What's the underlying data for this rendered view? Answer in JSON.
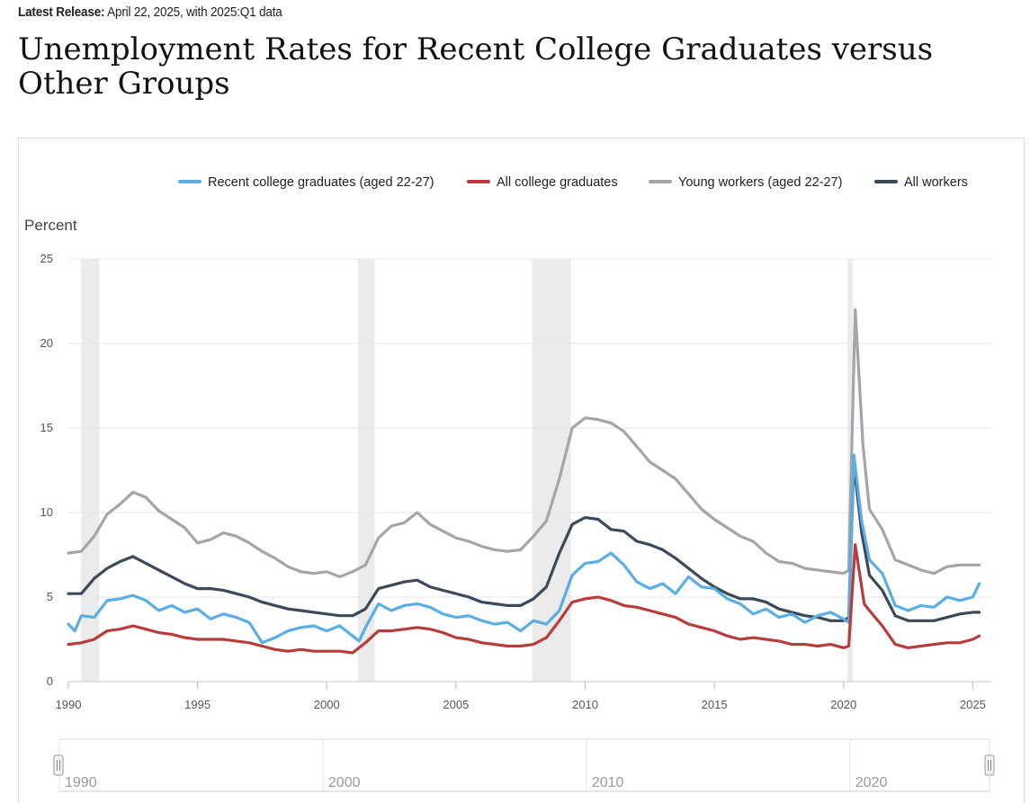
{
  "header": {
    "release_label": "Latest Release:",
    "release_text": "April 22, 2025, with 2025:Q1 data",
    "title": "Unemployment Rates for Recent College Graduates versus Other Groups"
  },
  "colors": {
    "recent": "#5aaee3",
    "all_grads": "#b83c3c",
    "young": "#a3a5aa",
    "all_workers": "#3b4a58",
    "recession": "#ebebeb",
    "grid": "#e4e4e4"
  },
  "chart_data": {
    "type": "line",
    "title": "Unemployment Rates for Recent College Graduates versus Other Groups",
    "ylabel": "Percent",
    "xlabel": "",
    "xlim": [
      1990,
      2025.3
    ],
    "ylim": [
      0,
      25
    ],
    "yticks": [
      "0",
      "5",
      "10",
      "15",
      "20",
      "25"
    ],
    "xticks": [
      "1990",
      "1995",
      "2000",
      "2005",
      "2010",
      "2015",
      "2020",
      "2025"
    ],
    "legend_position": "top-right",
    "recessions": [
      [
        1990.5,
        1991.2
      ],
      [
        2001.2,
        2001.85
      ],
      [
        2007.95,
        2009.45
      ],
      [
        2020.15,
        2020.35
      ]
    ],
    "navigator_labels": [
      "1990",
      "2000",
      "2010",
      "2020"
    ],
    "series": [
      {
        "name": "Recent college graduates (aged 22-27)",
        "key": "recent",
        "points": [
          [
            1990,
            3.4
          ],
          [
            1990.25,
            3.0
          ],
          [
            1990.5,
            3.9
          ],
          [
            1991,
            3.8
          ],
          [
            1991.5,
            4.8
          ],
          [
            1992,
            4.9
          ],
          [
            1992.5,
            5.1
          ],
          [
            1993,
            4.8
          ],
          [
            1993.5,
            4.2
          ],
          [
            1994,
            4.5
          ],
          [
            1994.5,
            4.1
          ],
          [
            1995,
            4.3
          ],
          [
            1995.5,
            3.7
          ],
          [
            1996,
            4.0
          ],
          [
            1996.5,
            3.8
          ],
          [
            1997,
            3.5
          ],
          [
            1997.5,
            2.3
          ],
          [
            1998,
            2.6
          ],
          [
            1998.5,
            3.0
          ],
          [
            1999,
            3.2
          ],
          [
            1999.5,
            3.3
          ],
          [
            2000,
            3.0
          ],
          [
            2000.5,
            3.3
          ],
          [
            2001,
            2.7
          ],
          [
            2001.25,
            2.4
          ],
          [
            2001.5,
            3.2
          ],
          [
            2002,
            4.6
          ],
          [
            2002.5,
            4.2
          ],
          [
            2003,
            4.5
          ],
          [
            2003.5,
            4.6
          ],
          [
            2004,
            4.4
          ],
          [
            2004.5,
            4.0
          ],
          [
            2005,
            3.8
          ],
          [
            2005.5,
            3.9
          ],
          [
            2006,
            3.6
          ],
          [
            2006.5,
            3.4
          ],
          [
            2007,
            3.5
          ],
          [
            2007.5,
            3.0
          ],
          [
            2008,
            3.6
          ],
          [
            2008.5,
            3.4
          ],
          [
            2009,
            4.2
          ],
          [
            2009.5,
            6.3
          ],
          [
            2010,
            7.0
          ],
          [
            2010.5,
            7.1
          ],
          [
            2011,
            7.6
          ],
          [
            2011.5,
            6.9
          ],
          [
            2012,
            5.9
          ],
          [
            2012.5,
            5.5
          ],
          [
            2013,
            5.8
          ],
          [
            2013.5,
            5.2
          ],
          [
            2014,
            6.2
          ],
          [
            2014.5,
            5.6
          ],
          [
            2015,
            5.5
          ],
          [
            2015.5,
            4.9
          ],
          [
            2016,
            4.6
          ],
          [
            2016.5,
            4.0
          ],
          [
            2017,
            4.3
          ],
          [
            2017.5,
            3.8
          ],
          [
            2018,
            4.0
          ],
          [
            2018.5,
            3.5
          ],
          [
            2019,
            3.9
          ],
          [
            2019.5,
            4.1
          ],
          [
            2020,
            3.7
          ],
          [
            2020.2,
            3.5
          ],
          [
            2020.4,
            13.4
          ],
          [
            2020.7,
            9.5
          ],
          [
            2021,
            7.2
          ],
          [
            2021.5,
            6.4
          ],
          [
            2022,
            4.5
          ],
          [
            2022.5,
            4.2
          ],
          [
            2023,
            4.5
          ],
          [
            2023.5,
            4.4
          ],
          [
            2024,
            5.0
          ],
          [
            2024.5,
            4.8
          ],
          [
            2025,
            5.0
          ],
          [
            2025.25,
            5.8
          ]
        ]
      },
      {
        "name": "All college graduates",
        "key": "all_grads",
        "points": [
          [
            1990,
            2.2
          ],
          [
            1990.5,
            2.3
          ],
          [
            1991,
            2.5
          ],
          [
            1991.5,
            3.0
          ],
          [
            1992,
            3.1
          ],
          [
            1992.5,
            3.3
          ],
          [
            1993,
            3.1
          ],
          [
            1993.5,
            2.9
          ],
          [
            1994,
            2.8
          ],
          [
            1994.5,
            2.6
          ],
          [
            1995,
            2.5
          ],
          [
            1995.5,
            2.5
          ],
          [
            1996,
            2.5
          ],
          [
            1996.5,
            2.4
          ],
          [
            1997,
            2.3
          ],
          [
            1997.5,
            2.1
          ],
          [
            1998,
            1.9
          ],
          [
            1998.5,
            1.8
          ],
          [
            1999,
            1.9
          ],
          [
            1999.5,
            1.8
          ],
          [
            2000,
            1.8
          ],
          [
            2000.5,
            1.8
          ],
          [
            2001,
            1.7
          ],
          [
            2001.5,
            2.3
          ],
          [
            2002,
            3.0
          ],
          [
            2002.5,
            3.0
          ],
          [
            2003,
            3.1
          ],
          [
            2003.5,
            3.2
          ],
          [
            2004,
            3.1
          ],
          [
            2004.5,
            2.9
          ],
          [
            2005,
            2.6
          ],
          [
            2005.5,
            2.5
          ],
          [
            2006,
            2.3
          ],
          [
            2006.5,
            2.2
          ],
          [
            2007,
            2.1
          ],
          [
            2007.5,
            2.1
          ],
          [
            2008,
            2.2
          ],
          [
            2008.5,
            2.6
          ],
          [
            2009,
            3.6
          ],
          [
            2009.5,
            4.7
          ],
          [
            2010,
            4.9
          ],
          [
            2010.5,
            5.0
          ],
          [
            2011,
            4.8
          ],
          [
            2011.5,
            4.5
          ],
          [
            2012,
            4.4
          ],
          [
            2012.5,
            4.2
          ],
          [
            2013,
            4.0
          ],
          [
            2013.5,
            3.8
          ],
          [
            2014,
            3.4
          ],
          [
            2014.5,
            3.2
          ],
          [
            2015,
            3.0
          ],
          [
            2015.5,
            2.7
          ],
          [
            2016,
            2.5
          ],
          [
            2016.5,
            2.6
          ],
          [
            2017,
            2.5
          ],
          [
            2017.5,
            2.4
          ],
          [
            2018,
            2.2
          ],
          [
            2018.5,
            2.2
          ],
          [
            2019,
            2.1
          ],
          [
            2019.5,
            2.2
          ],
          [
            2020,
            2.0
          ],
          [
            2020.2,
            2.1
          ],
          [
            2020.45,
            8.1
          ],
          [
            2020.8,
            4.6
          ],
          [
            2021,
            4.2
          ],
          [
            2021.5,
            3.3
          ],
          [
            2022,
            2.2
          ],
          [
            2022.5,
            2.0
          ],
          [
            2023,
            2.1
          ],
          [
            2023.5,
            2.2
          ],
          [
            2024,
            2.3
          ],
          [
            2024.5,
            2.3
          ],
          [
            2025,
            2.5
          ],
          [
            2025.25,
            2.7
          ]
        ]
      },
      {
        "name": "Young workers (aged 22-27)",
        "key": "young",
        "points": [
          [
            1990,
            7.6
          ],
          [
            1990.5,
            7.7
          ],
          [
            1991,
            8.6
          ],
          [
            1991.5,
            9.9
          ],
          [
            1992,
            10.5
          ],
          [
            1992.5,
            11.2
          ],
          [
            1993,
            10.9
          ],
          [
            1993.5,
            10.1
          ],
          [
            1994,
            9.6
          ],
          [
            1994.5,
            9.1
          ],
          [
            1995,
            8.2
          ],
          [
            1995.5,
            8.4
          ],
          [
            1996,
            8.8
          ],
          [
            1996.5,
            8.6
          ],
          [
            1997,
            8.2
          ],
          [
            1997.5,
            7.7
          ],
          [
            1998,
            7.3
          ],
          [
            1998.5,
            6.8
          ],
          [
            1999,
            6.5
          ],
          [
            1999.5,
            6.4
          ],
          [
            2000,
            6.5
          ],
          [
            2000.5,
            6.2
          ],
          [
            2001,
            6.5
          ],
          [
            2001.5,
            6.9
          ],
          [
            2002,
            8.5
          ],
          [
            2002.5,
            9.2
          ],
          [
            2003,
            9.4
          ],
          [
            2003.5,
            10.0
          ],
          [
            2004,
            9.3
          ],
          [
            2004.5,
            8.9
          ],
          [
            2005,
            8.5
          ],
          [
            2005.5,
            8.3
          ],
          [
            2006,
            8.0
          ],
          [
            2006.5,
            7.8
          ],
          [
            2007,
            7.7
          ],
          [
            2007.5,
            7.8
          ],
          [
            2008,
            8.6
          ],
          [
            2008.5,
            9.5
          ],
          [
            2009,
            12.0
          ],
          [
            2009.5,
            15.0
          ],
          [
            2010,
            15.6
          ],
          [
            2010.5,
            15.5
          ],
          [
            2011,
            15.3
          ],
          [
            2011.5,
            14.8
          ],
          [
            2012,
            13.9
          ],
          [
            2012.5,
            13.0
          ],
          [
            2013,
            12.5
          ],
          [
            2013.5,
            12.0
          ],
          [
            2014,
            11.1
          ],
          [
            2014.5,
            10.2
          ],
          [
            2015,
            9.6
          ],
          [
            2015.5,
            9.1
          ],
          [
            2016,
            8.6
          ],
          [
            2016.5,
            8.3
          ],
          [
            2017,
            7.6
          ],
          [
            2017.5,
            7.1
          ],
          [
            2018,
            7.0
          ],
          [
            2018.5,
            6.7
          ],
          [
            2019,
            6.6
          ],
          [
            2019.5,
            6.5
          ],
          [
            2020,
            6.4
          ],
          [
            2020.2,
            6.6
          ],
          [
            2020.45,
            22.0
          ],
          [
            2020.75,
            14.0
          ],
          [
            2021,
            10.2
          ],
          [
            2021.5,
            9.0
          ],
          [
            2022,
            7.2
          ],
          [
            2022.5,
            6.9
          ],
          [
            2023,
            6.6
          ],
          [
            2023.5,
            6.4
          ],
          [
            2024,
            6.8
          ],
          [
            2024.5,
            6.9
          ],
          [
            2025,
            6.9
          ],
          [
            2025.25,
            6.9
          ]
        ]
      },
      {
        "name": "All workers",
        "key": "all_workers",
        "points": [
          [
            1990,
            5.2
          ],
          [
            1990.5,
            5.2
          ],
          [
            1991,
            6.1
          ],
          [
            1991.5,
            6.7
          ],
          [
            1992,
            7.1
          ],
          [
            1992.5,
            7.4
          ],
          [
            1993,
            7.0
          ],
          [
            1993.5,
            6.6
          ],
          [
            1994,
            6.2
          ],
          [
            1994.5,
            5.8
          ],
          [
            1995,
            5.5
          ],
          [
            1995.5,
            5.5
          ],
          [
            1996,
            5.4
          ],
          [
            1996.5,
            5.2
          ],
          [
            1997,
            5.0
          ],
          [
            1997.5,
            4.7
          ],
          [
            1998,
            4.5
          ],
          [
            1998.5,
            4.3
          ],
          [
            1999,
            4.2
          ],
          [
            1999.5,
            4.1
          ],
          [
            2000,
            4.0
          ],
          [
            2000.5,
            3.9
          ],
          [
            2001,
            3.9
          ],
          [
            2001.5,
            4.3
          ],
          [
            2002,
            5.5
          ],
          [
            2002.5,
            5.7
          ],
          [
            2003,
            5.9
          ],
          [
            2003.5,
            6.0
          ],
          [
            2004,
            5.6
          ],
          [
            2004.5,
            5.4
          ],
          [
            2005,
            5.2
          ],
          [
            2005.5,
            5.0
          ],
          [
            2006,
            4.7
          ],
          [
            2006.5,
            4.6
          ],
          [
            2007,
            4.5
          ],
          [
            2007.5,
            4.5
          ],
          [
            2008,
            4.9
          ],
          [
            2008.5,
            5.6
          ],
          [
            2009,
            7.6
          ],
          [
            2009.5,
            9.3
          ],
          [
            2010,
            9.7
          ],
          [
            2010.5,
            9.6
          ],
          [
            2011,
            9.0
          ],
          [
            2011.5,
            8.9
          ],
          [
            2012,
            8.3
          ],
          [
            2012.5,
            8.1
          ],
          [
            2013,
            7.8
          ],
          [
            2013.5,
            7.3
          ],
          [
            2014,
            6.7
          ],
          [
            2014.5,
            6.1
          ],
          [
            2015,
            5.6
          ],
          [
            2015.5,
            5.2
          ],
          [
            2016,
            4.9
          ],
          [
            2016.5,
            4.9
          ],
          [
            2017,
            4.7
          ],
          [
            2017.5,
            4.3
          ],
          [
            2018,
            4.1
          ],
          [
            2018.5,
            3.9
          ],
          [
            2019,
            3.8
          ],
          [
            2019.5,
            3.6
          ],
          [
            2020,
            3.6
          ],
          [
            2020.2,
            3.8
          ],
          [
            2020.4,
            12.9
          ],
          [
            2020.7,
            8.8
          ],
          [
            2021,
            6.3
          ],
          [
            2021.5,
            5.4
          ],
          [
            2022,
            3.9
          ],
          [
            2022.5,
            3.6
          ],
          [
            2023,
            3.6
          ],
          [
            2023.5,
            3.6
          ],
          [
            2024,
            3.8
          ],
          [
            2024.5,
            4.0
          ],
          [
            2025,
            4.1
          ],
          [
            2025.25,
            4.1
          ]
        ]
      }
    ]
  }
}
